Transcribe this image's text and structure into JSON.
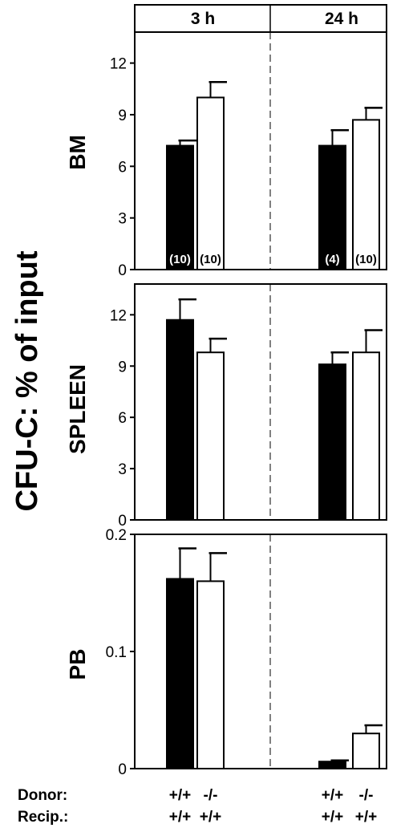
{
  "chart_data": {
    "type": "bar",
    "ylabel": "CFU-C: % of input",
    "timepoints": [
      "3 h",
      "24 h"
    ],
    "genotype_rows": {
      "donor_label": "Donor:",
      "recip_label": "Recip.:",
      "groups": [
        {
          "donor": "+/+",
          "recip": "+/+",
          "fill": "#000000"
        },
        {
          "donor": "-/-",
          "recip": "+/+",
          "fill": "#ffffff"
        },
        {
          "donor": "+/+",
          "recip": "+/+",
          "fill": "#000000"
        },
        {
          "donor": "-/-",
          "recip": "+/+",
          "fill": "#ffffff"
        }
      ]
    },
    "panels": [
      {
        "name": "BM",
        "ylim": [
          0,
          13.8
        ],
        "yticks": [
          0,
          3,
          6,
          9,
          12
        ],
        "ytick_labels": [
          "0",
          "3",
          "6",
          "9",
          "12"
        ],
        "values": [
          7.2,
          10.0,
          7.2,
          8.7
        ],
        "errors": [
          0.3,
          0.9,
          0.9,
          0.7
        ],
        "n_labels": [
          "(10)",
          "(10)",
          "(4)",
          "(10)"
        ]
      },
      {
        "name": "SPLEEN",
        "ylim": [
          0,
          13.8
        ],
        "yticks": [
          0,
          3,
          6,
          9,
          12
        ],
        "ytick_labels": [
          "0",
          "3",
          "6",
          "9",
          "12"
        ],
        "values": [
          11.7,
          9.8,
          9.1,
          9.8
        ],
        "errors": [
          1.2,
          0.8,
          0.7,
          1.3
        ],
        "n_labels": [
          "",
          "",
          "",
          ""
        ]
      },
      {
        "name": "PB",
        "ylim": [
          0,
          0.2
        ],
        "yticks": [
          0,
          0.1,
          0.2
        ],
        "ytick_labels": [
          "0",
          "0.1",
          "0.2"
        ],
        "values": [
          0.162,
          0.16,
          0.006,
          0.03
        ],
        "errors": [
          0.026,
          0.024,
          0.001,
          0.007
        ],
        "n_labels": [
          "",
          "",
          "",
          ""
        ]
      }
    ]
  }
}
